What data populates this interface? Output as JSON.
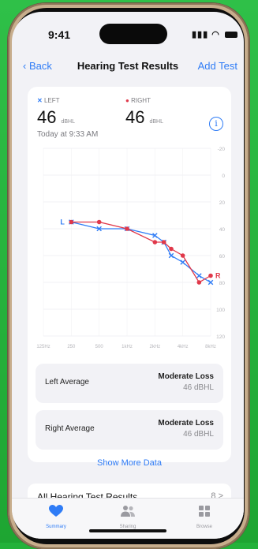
{
  "status": {
    "time": "9:41"
  },
  "nav": {
    "back_label": "Back",
    "title": "Hearing Test Results",
    "add_label": "Add Test"
  },
  "summary": {
    "left_label": "LEFT",
    "right_label": "RIGHT",
    "left_value": "46",
    "right_value": "46",
    "unit": "dBHL",
    "timestamp": "Today at 9:33 AM",
    "info_icon": "info-circle-icon"
  },
  "chart_data": {
    "type": "line",
    "categories": [
      "125Hz",
      "250",
      "500",
      "1kHz",
      "2kHz",
      "4kHz",
      "8kHz"
    ],
    "y_ticks": [
      "-20",
      "0",
      "20",
      "40",
      "60",
      "80",
      "100",
      "120"
    ],
    "ylim": [
      -20,
      120
    ],
    "y_inverted": true,
    "grid": true,
    "series": [
      {
        "name": "L",
        "color": "#2f7cf6",
        "marker": "x",
        "x": [
          250,
          500,
          1000,
          2000,
          2500,
          3000,
          4000,
          6000,
          8000
        ],
        "values": [
          35,
          40,
          40,
          45,
          50,
          60,
          65,
          75,
          80
        ]
      },
      {
        "name": "R",
        "color": "#e0384a",
        "marker": "dot",
        "x": [
          250,
          500,
          1000,
          2000,
          2500,
          3000,
          4000,
          6000,
          8000
        ],
        "values": [
          35,
          35,
          40,
          50,
          50,
          55,
          60,
          80,
          75
        ]
      }
    ]
  },
  "averages": [
    {
      "label": "Left Average",
      "status": "Moderate Loss",
      "value": "46 dBHL"
    },
    {
      "label": "Right Average",
      "status": "Moderate Loss",
      "value": "46 dBHL"
    }
  ],
  "show_more_label": "Show More Data",
  "all_results": {
    "label": "All Hearing Test Results",
    "count": "8 >"
  },
  "tabs": [
    {
      "label": "Summary",
      "icon": "heart-icon",
      "active": true
    },
    {
      "label": "Sharing",
      "icon": "people-icon",
      "active": false
    },
    {
      "label": "Browse",
      "icon": "grid-icon",
      "active": false
    }
  ],
  "colors": {
    "accent": "#2f7cf6",
    "left": "#2f7cf6",
    "right": "#e0384a",
    "background": "#23b23a"
  }
}
